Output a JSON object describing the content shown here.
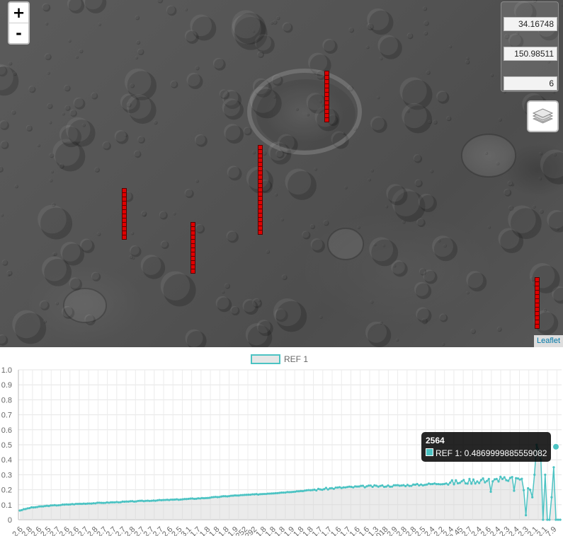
{
  "map": {
    "zoom_in_label": "+",
    "zoom_out_label": "-",
    "coords": {
      "lat": "34.16748",
      "lon": "150.98511",
      "zoom": "6"
    },
    "attribution": "Leaflet",
    "track_color": "#e00000"
  },
  "chart_data": {
    "type": "line",
    "legend": [
      {
        "name": "REF 1",
        "color": "#4cc3c3"
      }
    ],
    "series": [
      {
        "name": "REF 1",
        "color": "#4cc3c3"
      }
    ],
    "ylim": [
      0,
      1.0
    ],
    "yticks": [
      "1.0",
      "0.9",
      "0.8",
      "0.7",
      "0.6",
      "0.5",
      "0.4",
      "0.3",
      "0.2",
      "0.1",
      "0"
    ],
    "xtick_labels": [
      "2.6",
      "2.8",
      "2.6",
      "2.5",
      "2.7",
      "2.6",
      "2.6",
      "2.7",
      "2.8",
      "2.7",
      "2.7",
      "2.7",
      "2.8",
      "2.7",
      "2.7",
      "2.7",
      "2.6",
      "2.5",
      "3.1",
      "1.7",
      "1.8",
      "1.8",
      "1.8",
      "1.9",
      "252",
      "292",
      "1.8",
      "1.8",
      "1.8",
      "1.9",
      "1.8",
      "1.8",
      "1.7",
      "1.7",
      "1.6",
      "1.7",
      "1.6",
      "1.6",
      "1.3",
      "018",
      "2.9",
      "2.8",
      "2.8",
      "2.5",
      "2.4",
      "2.2",
      "2.4",
      "2.45",
      "2.7",
      "2.4",
      "2.6",
      "2.4",
      "2.3",
      "2.4",
      "2.3",
      "2.1",
      "2.1",
      "7.9"
    ],
    "y_curve": [
      [
        0.0,
        0.062
      ],
      [
        0.02,
        0.08
      ],
      [
        0.05,
        0.092
      ],
      [
        0.1,
        0.104
      ],
      [
        0.15,
        0.112
      ],
      [
        0.2,
        0.12
      ],
      [
        0.25,
        0.128
      ],
      [
        0.3,
        0.135
      ],
      [
        0.35,
        0.145
      ],
      [
        0.4,
        0.16
      ],
      [
        0.45,
        0.17
      ],
      [
        0.5,
        0.183
      ],
      [
        0.55,
        0.198
      ],
      [
        0.6,
        0.213
      ],
      [
        0.65,
        0.222
      ],
      [
        0.7,
        0.226
      ],
      [
        0.75,
        0.233
      ],
      [
        0.8,
        0.243
      ],
      [
        0.85,
        0.258
      ],
      [
        0.9,
        0.268
      ],
      [
        0.93,
        0.278
      ],
      [
        0.95,
        0.284
      ],
      [
        1.0,
        0.28
      ]
    ],
    "spike_points": [
      0.03,
      0.21,
      0.2,
      0.15,
      0.3,
      0.5,
      0.46,
      0.4,
      0.0,
      0.3,
      0.0,
      0.0,
      0.15,
      0.35,
      0.0,
      0.0,
      0.0
    ],
    "tooltip": {
      "title": "2564",
      "label": "REF 1: 0.4869999885559082"
    }
  }
}
